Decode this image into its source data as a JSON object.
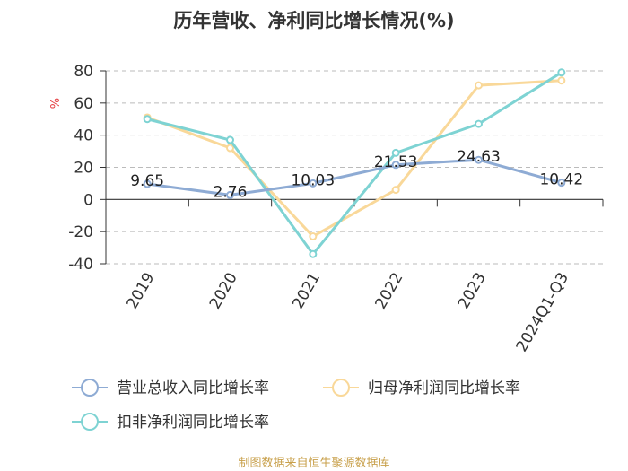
{
  "chart_data": {
    "type": "line",
    "title": "历年营收、净利同比增长情况(%)",
    "ylabel": "%",
    "categories": [
      "2019",
      "2020",
      "2021",
      "2022",
      "2023",
      "2024Q1-Q3"
    ],
    "ylim": [
      -40,
      80
    ],
    "yticks": [
      80,
      60,
      40,
      20,
      0,
      -20,
      -40
    ],
    "grid": true,
    "legend_position": "bottom",
    "series": [
      {
        "name": "营业总收入同比增长率",
        "color": "#8eabd4",
        "values": [
          9.65,
          2.76,
          10.03,
          21.53,
          24.63,
          10.42
        ],
        "labels": [
          "9.65",
          "2.76",
          "10.03",
          "21.53",
          "24.63",
          "10.42"
        ]
      },
      {
        "name": "归母净利润同比增长率",
        "color": "#f9d899",
        "values": [
          51,
          32,
          -23,
          6,
          71,
          74
        ]
      },
      {
        "name": "扣非净利润同比增长率",
        "color": "#7ed3d3",
        "values": [
          50,
          37,
          -34,
          29,
          47,
          79
        ]
      }
    ]
  },
  "source": "制图数据来自恒生聚源数据库"
}
